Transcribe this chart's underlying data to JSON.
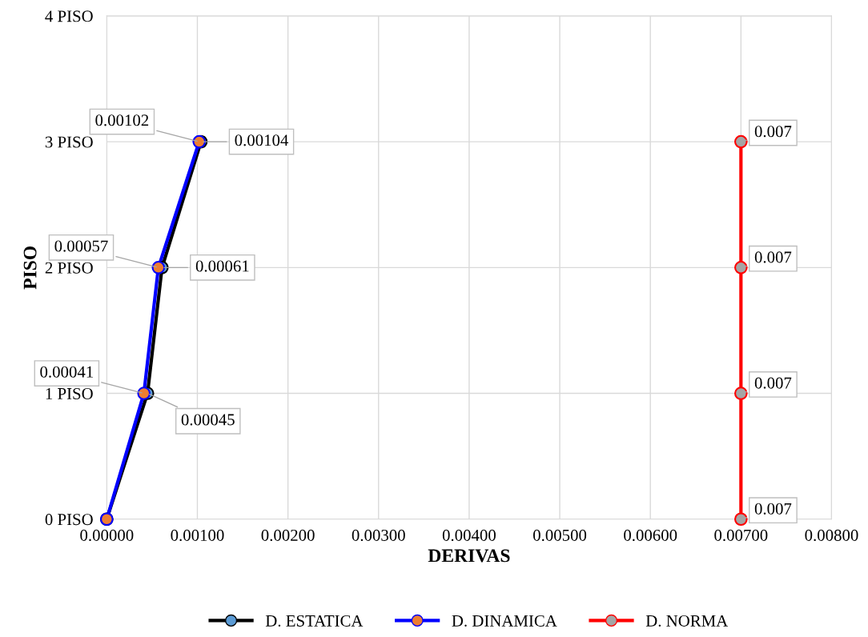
{
  "chart_data": {
    "type": "line",
    "xlabel": "DERIVAS",
    "ylabel": "PISO",
    "xlim": [
      0,
      0.008
    ],
    "xticks": [
      {
        "value": 0,
        "label": "0.00000"
      },
      {
        "value": 0.001,
        "label": "0.00100"
      },
      {
        "value": 0.002,
        "label": "0.00200"
      },
      {
        "value": 0.003,
        "label": "0.00300"
      },
      {
        "value": 0.004,
        "label": "0.00400"
      },
      {
        "value": 0.005,
        "label": "0.00500"
      },
      {
        "value": 0.006,
        "label": "0.00600"
      },
      {
        "value": 0.007,
        "label": "0.00700"
      },
      {
        "value": 0.008,
        "label": "0.00800"
      }
    ],
    "orientation": "horizontal",
    "categories": [
      "4 PISO",
      "3 PISO",
      "2 PISO",
      "1 PISO",
      "0 PISO"
    ],
    "grid": true,
    "legend": "bottom",
    "marker": "circle",
    "line_style": "solid",
    "series": [
      {
        "name": "D. ESTATICA",
        "color": "#000000",
        "colors": [
          null,
          "#5b9bd5",
          "#5b9bd5",
          "#5b9bd5",
          "#5b9bd5"
        ],
        "values": [
          null,
          0.00104,
          0.00061,
          0.00045,
          0
        ],
        "value_labels": [
          null,
          "0.00104",
          "0.00061",
          "0.00045",
          null
        ]
      },
      {
        "name": "D. DINAMICA",
        "color": "#0000ff",
        "colors": [
          null,
          "#ed7d31",
          "#ed7d31",
          "#ed7d31",
          "#ed7d31"
        ],
        "values": [
          null,
          0.00102,
          0.00057,
          0.00041,
          0
        ],
        "value_labels": [
          null,
          "0.00102",
          "0.00057",
          "0.00041",
          null
        ]
      },
      {
        "name": "D. NORMA",
        "color": "#ff0000",
        "colors": [
          null,
          "#a5a5a5",
          "#a5a5a5",
          "#a5a5a5",
          "#a5a5a5"
        ],
        "values": [
          null,
          0.007,
          0.007,
          0.007,
          0.007
        ],
        "value_labels": [
          null,
          "0.007",
          "0.007",
          "0.007",
          "0.007"
        ]
      }
    ]
  }
}
